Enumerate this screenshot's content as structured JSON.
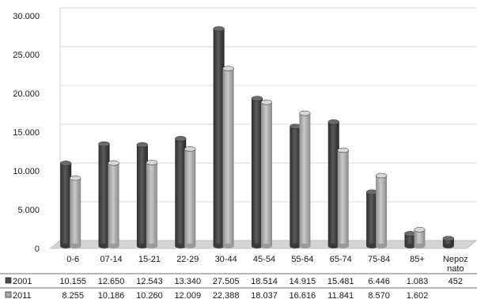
{
  "chart_data": {
    "type": "bar",
    "title": "",
    "xlabel": "",
    "ylabel": "",
    "ylim": [
      0,
      30000
    ],
    "yticks": [
      "0",
      "5.000",
      "10.000",
      "15.000",
      "20.000",
      "25.000",
      "30.000"
    ],
    "ytick_values": [
      0,
      5000,
      10000,
      15000,
      20000,
      25000,
      30000
    ],
    "categories": [
      "0-6",
      "07-14",
      "15-21",
      "22-29",
      "30-44",
      "45-54",
      "55-64",
      "65-74",
      "75-84",
      "85+",
      "Nepoz nato"
    ],
    "series": [
      {
        "name": "2001",
        "color": "#4a4a4a",
        "values": [
          10155,
          12650,
          12543,
          13340,
          27505,
          18514,
          14915,
          15481,
          6446,
          1083,
          452
        ],
        "labels": [
          "10.155",
          "12.650",
          "12.543",
          "13.340",
          "27.505",
          "18.514",
          "14.915",
          "15.481",
          "6.446",
          "1.083",
          "452"
        ]
      },
      {
        "name": "2011",
        "color": "#a8a8a8",
        "values": [
          8255,
          10186,
          10260,
          12009,
          22388,
          18037,
          16616,
          11841,
          8570,
          1602,
          null
        ],
        "labels": [
          "8.255",
          "10.186",
          "10.260",
          "12.009",
          "22.388",
          "18.037",
          "16.616",
          "11.841",
          "8.570",
          "1.602",
          ""
        ]
      }
    ],
    "grid": true,
    "legend": "data-table"
  }
}
